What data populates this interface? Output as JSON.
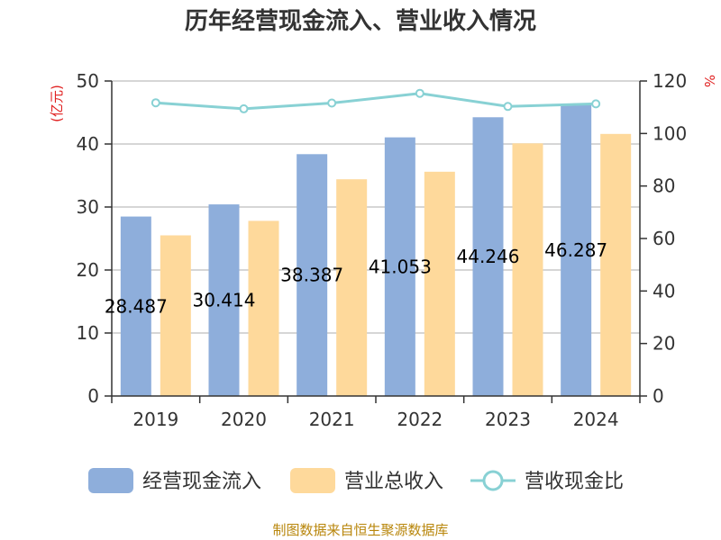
{
  "chart_data": {
    "type": "bar",
    "title": "历年经营现金流入、营业收入情况",
    "categories": [
      "2019",
      "2020",
      "2021",
      "2022",
      "2023",
      "2024"
    ],
    "series": [
      {
        "name": "经营现金流入",
        "type": "bar",
        "axis": "left",
        "color": "#8eaedb",
        "values": [
          28.487,
          30.414,
          38.387,
          41.053,
          44.246,
          46.287
        ],
        "labels": [
          "28.487",
          "30.414",
          "38.387",
          "41.053",
          "44.246",
          "46.287"
        ]
      },
      {
        "name": "营业总收入",
        "type": "bar",
        "axis": "left",
        "color": "#fed99b",
        "values": [
          25.5,
          27.8,
          34.4,
          35.6,
          40.1,
          41.6
        ]
      },
      {
        "name": "营收现金比",
        "type": "line",
        "axis": "right",
        "color": "#88d1d4",
        "values": [
          111.7,
          109.4,
          111.6,
          115.3,
          110.3,
          111.3
        ]
      }
    ],
    "y_left": {
      "label": "(亿元)",
      "min": 0,
      "max": 50,
      "ticks": [
        0,
        10,
        20,
        30,
        40,
        50
      ]
    },
    "y_right": {
      "label": "%",
      "min": 0,
      "max": 120,
      "ticks": [
        0,
        20,
        40,
        60,
        80,
        100,
        120
      ]
    },
    "grid": true,
    "legend_position": "bottom"
  },
  "source_text": "制图数据来自恒生聚源数据库"
}
